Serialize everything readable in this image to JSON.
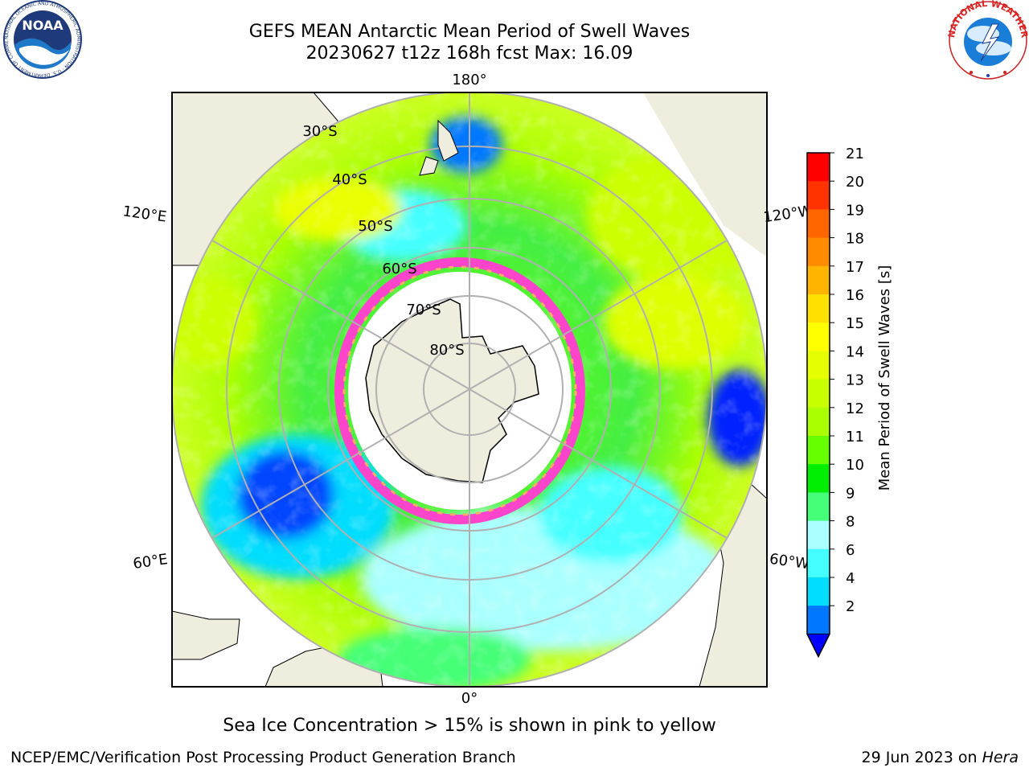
{
  "title": {
    "line1": "GEFS MEAN Antarctic Mean Period of Swell Waves",
    "line2": "20230627 t12z 168h fcst   Max: 16.09"
  },
  "logos": {
    "noaa_text": "NOAA",
    "noaa_ring": "NATIONAL OCEANIC AND ATMOSPHERIC ADMINISTRATION · U.S. DEPARTMENT OF COMMERCE",
    "nws_ring": "NATIONAL WEATHER SERVICE"
  },
  "map": {
    "projection": "south polar stereographic",
    "longitude_labels": {
      "top": "180°",
      "upper_left": "120°E",
      "upper_right": "120°W",
      "lower_left": "60°E",
      "lower_right": "60°W",
      "bottom": "0°"
    },
    "latitude_labels": [
      "30°S",
      "40°S",
      "50°S",
      "60°S",
      "70°S",
      "80°S"
    ],
    "colors": {
      "land": "#efedde",
      "sea_ice": "#ffffff",
      "ice_edge": "#ff44cc",
      "grid": "#b0b0b0"
    }
  },
  "colorbar": {
    "label": "Mean Period of Swell Waves [s]",
    "ticks": [
      "21",
      "20",
      "19",
      "18",
      "17",
      "16",
      "15",
      "14",
      "13",
      "12",
      "11",
      "10",
      "9",
      "8",
      "6",
      "4",
      "2"
    ],
    "colors": [
      "#ff0000",
      "#ff3300",
      "#ff6600",
      "#ff8c00",
      "#ffb400",
      "#ffe000",
      "#ffff00",
      "#e6ff00",
      "#c8ff00",
      "#aaff00",
      "#66ff00",
      "#00ee00",
      "#44ff77",
      "#aaffff",
      "#44ffff",
      "#00ddff",
      "#0077ff"
    ],
    "under_color": "#0000ff"
  },
  "notes": {
    "sea_ice": "Sea Ice Concentration > 15% is shown in pink to yellow"
  },
  "footer": {
    "left": "NCEP/EMC/Verification Post Processing Product Generation Branch",
    "right_date": "29 Jun 2023 on",
    "right_machine": "Hera"
  }
}
